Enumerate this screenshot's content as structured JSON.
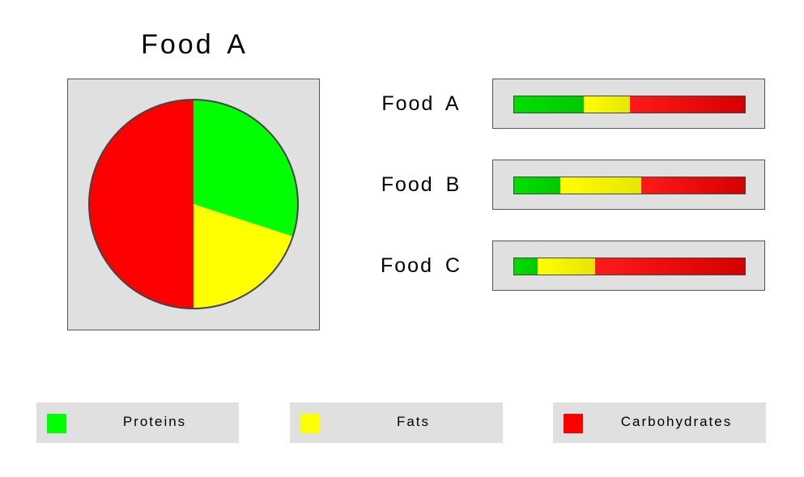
{
  "colors": {
    "proteins": "#00ff00",
    "fats": "#ffff00",
    "carbohydrates": "#ff0000"
  },
  "chart_data": [
    {
      "type": "pie",
      "title": "Food  A",
      "labels": [
        "Proteins",
        "Fats",
        "Carbohydrates"
      ],
      "values": [
        30,
        20,
        50
      ]
    },
    {
      "type": "bar",
      "stacked": true,
      "orientation": "horizontal",
      "categories": [
        "Food  A",
        "Food  B",
        "Food  C"
      ],
      "series": [
        {
          "name": "Proteins",
          "values": [
            30,
            20,
            10
          ]
        },
        {
          "name": "Fats",
          "values": [
            20,
            35,
            25
          ]
        },
        {
          "name": "Carbohydrates",
          "values": [
            50,
            45,
            65
          ]
        }
      ]
    }
  ],
  "legend": {
    "items": [
      {
        "label": "Proteins",
        "color": "#00ff00"
      },
      {
        "label": "Fats",
        "color": "#ffff00"
      },
      {
        "label": "Carbohydrates",
        "color": "#ff0000"
      }
    ]
  }
}
